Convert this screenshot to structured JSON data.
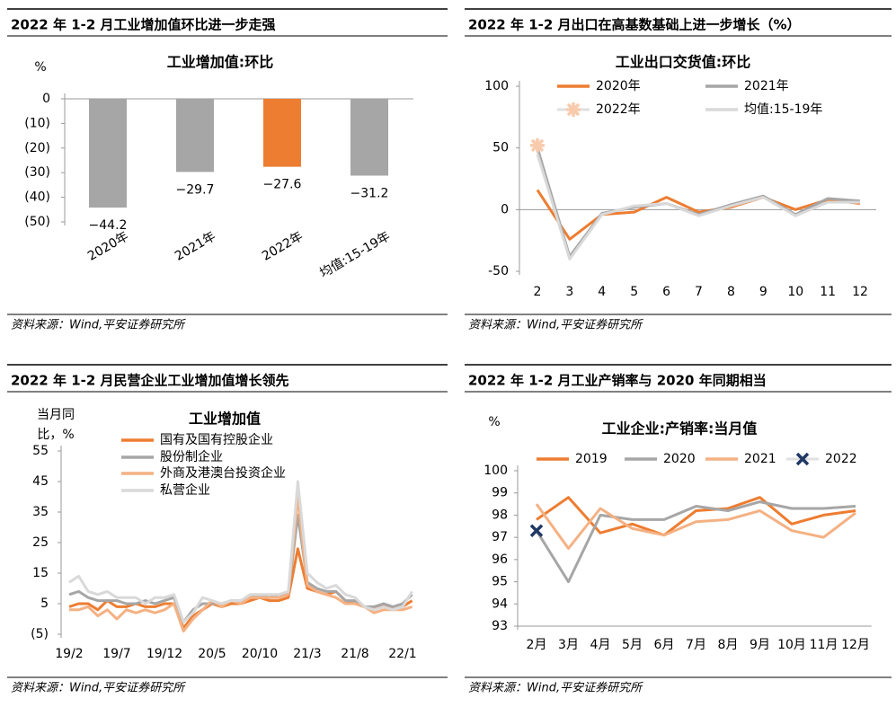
{
  "chart_data": [
    {
      "type": "bar",
      "heading": "2022 年 1-2 月工业增加值环比进一步走强",
      "title": "工业增加值:环比",
      "y_label": "%",
      "source": "资料来源：Wind,平安证券研究所",
      "categories": [
        "2020年",
        "2021年",
        "2022年",
        "均值:15-19年"
      ],
      "values": [
        -44.2,
        -29.7,
        -27.6,
        -31.2
      ],
      "value_labels": [
        "−44.2",
        "−29.7",
        "−27.6",
        "−31.2"
      ],
      "colors": [
        "#a6a6a6",
        "#a6a6a6",
        "#ed7d31",
        "#a6a6a6"
      ],
      "negative_color": "#e8302a",
      "ylim": [
        -50,
        0
      ],
      "yticks": [
        0,
        {
          "value": -10,
          "label": "(10)"
        },
        {
          "value": -20,
          "label": "(20)"
        },
        {
          "value": -30,
          "label": "(30)"
        },
        {
          "value": -40,
          "label": "(40)"
        },
        {
          "value": -50,
          "label": "(50)"
        }
      ]
    },
    {
      "type": "line",
      "heading": "2022 年 1-2 月出口在高基数基础上进一步增长（%）",
      "title": "工业出口交货值:环比",
      "source": "资料来源：Wind,平安证券研究所",
      "x": [
        2,
        3,
        4,
        5,
        6,
        7,
        8,
        9,
        10,
        11,
        12
      ],
      "xlim": [
        1.5,
        12.5
      ],
      "xticks": [
        2,
        3,
        4,
        5,
        6,
        7,
        8,
        9,
        10,
        11,
        12
      ],
      "ylim": [
        -50,
        100
      ],
      "yticks": [
        -50,
        0,
        50,
        100
      ],
      "zero_line": true,
      "series": [
        {
          "name": "2020年",
          "color": "#ed7d31",
          "values": [
            16,
            -24,
            -4,
            -2,
            10,
            -2,
            2,
            10,
            0,
            8,
            5
          ]
        },
        {
          "name": "2021年",
          "color": "#a6a6a6",
          "values": [
            50,
            -38,
            -3,
            2,
            5,
            -4,
            4,
            11,
            -4,
            9,
            7
          ]
        },
        {
          "name": "2022年",
          "color": "#f8cbad",
          "marker": "asterisk",
          "values": [
            52,
            null,
            null,
            null,
            null,
            null,
            null,
            null,
            null,
            null,
            null
          ]
        },
        {
          "name": "均值:15-19年",
          "color": "#d9d9d9",
          "values": [
            45,
            -40,
            -4,
            3,
            5,
            -5,
            3,
            10,
            -5,
            6,
            6
          ]
        }
      ]
    },
    {
      "type": "line",
      "heading": "2022 年 1-2 月民营企业工业增加值增长领先",
      "title": "工业增加值",
      "y_label": [
        "当月同",
        "比，%"
      ],
      "source": "资料来源：Wind,平安证券研究所",
      "negative_color": "#e8302a",
      "categories": [
        "19/2",
        null,
        null,
        null,
        null,
        "19/7",
        null,
        null,
        null,
        null,
        "19/12",
        null,
        null,
        null,
        null,
        "20/5",
        null,
        null,
        null,
        null,
        "20/10",
        null,
        null,
        null,
        null,
        "21/3",
        null,
        null,
        null,
        null,
        "21/8",
        null,
        null,
        null,
        null,
        "22/1",
        null
      ],
      "ylim": [
        -5,
        55
      ],
      "yticks": [
        {
          "value": -5,
          "label": "(5)"
        },
        5,
        15,
        25,
        35,
        45,
        55
      ],
      "series": [
        {
          "name": "国有及国有控股企业",
          "color": "#ed7d31",
          "values": [
            4,
            5,
            5,
            3,
            6,
            4,
            4,
            5,
            4,
            4,
            5,
            5,
            -3,
            1,
            3,
            5,
            4,
            5,
            5,
            6,
            7,
            6,
            6,
            7,
            23,
            10,
            9,
            8,
            9,
            6,
            5,
            4,
            3,
            5,
            3,
            4,
            6
          ]
        },
        {
          "name": "股份制企业",
          "color": "#a6a6a6",
          "values": [
            8,
            9,
            7,
            6,
            6,
            6,
            5,
            5,
            6,
            5,
            6,
            7,
            -1,
            3,
            5,
            5,
            5,
            6,
            6,
            7,
            8,
            7,
            8,
            8,
            34,
            12,
            10,
            9,
            9,
            6,
            6,
            4,
            4,
            5,
            4,
            5,
            8
          ]
        },
        {
          "name": "外商及港澳台投资企业",
          "color": "#f4b183",
          "values": [
            3,
            3,
            4,
            1,
            3,
            0,
            3,
            2,
            3,
            2,
            3,
            5,
            -4,
            0,
            3,
            6,
            4,
            6,
            5,
            7,
            7,
            7,
            7,
            8,
            40,
            11,
            9,
            8,
            7,
            5,
            5,
            4,
            2,
            3,
            3,
            3,
            4
          ]
        },
        {
          "name": "私营企业",
          "color": "#d9d9d9",
          "values": [
            12,
            14,
            9,
            8,
            9,
            7,
            7,
            7,
            5,
            7,
            7,
            8,
            -1,
            2,
            7,
            6,
            5,
            6,
            6,
            8,
            8,
            8,
            8,
            9,
            45,
            15,
            12,
            10,
            11,
            8,
            7,
            4,
            3,
            4,
            3,
            4,
            9
          ]
        }
      ]
    },
    {
      "type": "line",
      "heading": "2022 年 1-2 月工业产销率与 2020 年同期相当",
      "title": "工业企业:产销率:当月值",
      "y_label": "%",
      "source": "资料来源：Wind,平安证券研究所",
      "categories": [
        "2月",
        "3月",
        "4月",
        "5月",
        "6月",
        "7月",
        "8月",
        "9月",
        "10月",
        "11月",
        "12月"
      ],
      "ylim": [
        93,
        100
      ],
      "yticks": [
        93,
        94,
        95,
        96,
        97,
        98,
        99,
        100
      ],
      "series": [
        {
          "name": "2019",
          "color": "#ed7d31",
          "values": [
            97.8,
            98.8,
            97.2,
            97.6,
            97.1,
            98.2,
            98.3,
            98.8,
            97.6,
            98.0,
            98.2
          ]
        },
        {
          "name": "2020",
          "color": "#a6a6a6",
          "values": [
            97.3,
            95.0,
            98.0,
            97.8,
            97.8,
            98.4,
            98.2,
            98.6,
            98.3,
            98.3,
            98.4
          ]
        },
        {
          "name": "2021",
          "color": "#f4b183",
          "values": [
            98.5,
            96.5,
            98.3,
            97.4,
            97.1,
            97.7,
            97.8,
            98.2,
            97.3,
            97.0,
            98.1
          ]
        },
        {
          "name": "2022",
          "color": "#1f3864",
          "marker": "x",
          "values": [
            97.3,
            null,
            null,
            null,
            null,
            null,
            null,
            null,
            null,
            null,
            null
          ]
        }
      ]
    }
  ]
}
